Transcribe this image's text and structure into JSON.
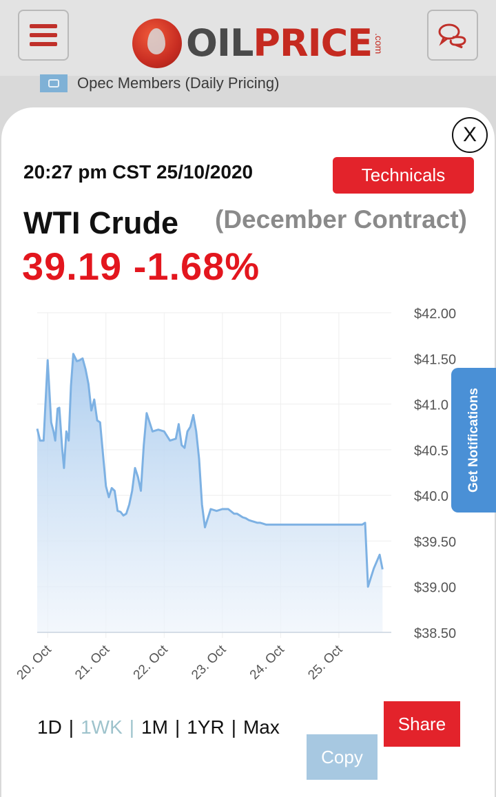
{
  "header": {
    "logo_oil": "OIL",
    "logo_price": "PRICE",
    "logo_com": ".com",
    "opec_link": "Opec Members (Daily Pricing)"
  },
  "modal": {
    "close_label": "X",
    "timestamp": "20:27 pm CST 25/10/2020",
    "technicals_label": "Technicals",
    "instrument": "WTI Crude",
    "contract": "(December Contract)",
    "price_change": "39.19 -1.68%",
    "notifications_label": "Get Notifications",
    "range_options": [
      "1D",
      "1WK",
      "1M",
      "1YR",
      "Max"
    ],
    "range_selected": "1WK",
    "share_label": "Share",
    "copy_label": "Copy"
  },
  "chart_data": {
    "type": "area",
    "title": "",
    "xlabel": "",
    "ylabel": "",
    "ylim": [
      38.5,
      42.0
    ],
    "y_ticks": [
      "$42.00",
      "$41.50",
      "$41.0",
      "$40.5",
      "$40.0",
      "$39.50",
      "$39.00",
      "$38.50"
    ],
    "x_ticks": [
      {
        "label": "20. Oct",
        "x": 0.4
      },
      {
        "label": "21. Oct",
        "x": 1.4
      },
      {
        "label": "22. Oct",
        "x": 2.4
      },
      {
        "label": "23. Oct",
        "x": 3.4
      },
      {
        "label": "24. Oct",
        "x": 4.4
      },
      {
        "label": "25. Oct",
        "x": 5.4
      }
    ],
    "xlim": [
      0.22,
      6.3
    ],
    "line_color": "#7db1e3",
    "x": [
      0.22,
      0.27,
      0.33,
      0.4,
      0.46,
      0.5,
      0.53,
      0.57,
      0.6,
      0.65,
      0.68,
      0.72,
      0.76,
      0.8,
      0.84,
      0.9,
      0.95,
      1.0,
      1.05,
      1.1,
      1.15,
      1.2,
      1.25,
      1.3,
      1.35,
      1.4,
      1.45,
      1.5,
      1.55,
      1.6,
      1.65,
      1.7,
      1.75,
      1.8,
      1.85,
      1.9,
      1.95,
      2.0,
      2.05,
      2.1,
      2.2,
      2.3,
      2.4,
      2.5,
      2.6,
      2.65,
      2.7,
      2.75,
      2.8,
      2.85,
      2.9,
      2.95,
      3.0,
      3.05,
      3.1,
      3.2,
      3.3,
      3.4,
      3.5,
      3.6,
      3.65,
      3.7,
      3.75,
      3.8,
      3.85,
      3.9,
      3.95,
      4.0,
      4.05,
      4.1,
      4.15,
      4.2,
      4.3,
      4.35,
      4.4,
      4.5,
      5.8,
      5.85,
      5.9,
      6.0,
      6.1,
      6.15
    ],
    "y": [
      40.73,
      40.6,
      40.6,
      41.48,
      40.8,
      40.7,
      40.6,
      40.95,
      40.96,
      40.5,
      40.3,
      40.7,
      40.6,
      41.2,
      41.55,
      41.47,
      41.48,
      41.5,
      41.38,
      41.22,
      40.93,
      41.05,
      40.82,
      40.8,
      40.45,
      40.1,
      39.98,
      40.08,
      40.05,
      39.83,
      39.82,
      39.78,
      39.8,
      39.9,
      40.05,
      40.3,
      40.2,
      40.05,
      40.55,
      40.9,
      40.7,
      40.72,
      40.7,
      40.6,
      40.62,
      40.78,
      40.55,
      40.52,
      40.7,
      40.75,
      40.88,
      40.7,
      40.4,
      39.9,
      39.65,
      39.85,
      39.83,
      39.85,
      39.85,
      39.8,
      39.8,
      39.78,
      39.76,
      39.75,
      39.73,
      39.72,
      39.71,
      39.7,
      39.7,
      39.69,
      39.68,
      39.68,
      39.68,
      39.68,
      39.68,
      39.68,
      39.68,
      39.7,
      39.0,
      39.2,
      39.35,
      39.19
    ]
  }
}
